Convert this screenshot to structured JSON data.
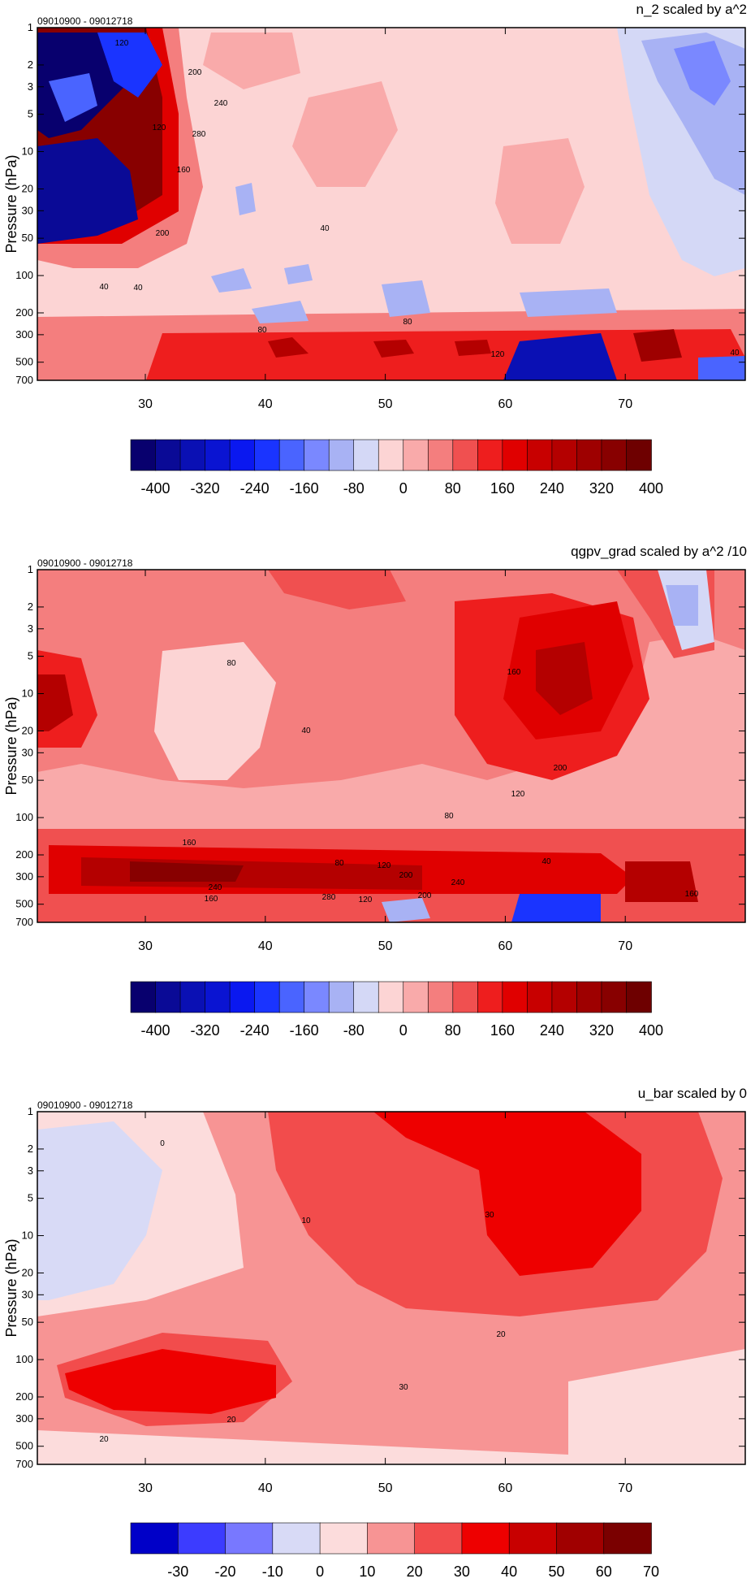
{
  "chart_data": [
    {
      "type": "contour",
      "title": "n_2 scaled by a^2",
      "date_range": "09010900 - 09012718",
      "ylabel": "Pressure (hPa)",
      "y_scale": "log",
      "y_ticks": [
        "1",
        "2",
        "3",
        "5",
        "10",
        "20",
        "30",
        "50",
        "100",
        "200",
        "300",
        "500",
        "700"
      ],
      "x_ticks": [
        "30",
        "40",
        "50",
        "60",
        "70"
      ],
      "xlim": [
        21,
        80
      ],
      "ylim": [
        700,
        1
      ],
      "colorbar_labels": [
        "-400",
        "-320",
        "-240",
        "-160",
        "-80",
        "0",
        "80",
        "160",
        "240",
        "320",
        "400"
      ],
      "colorbar_colors": [
        "#08006e",
        "#0a0a96",
        "#0a10b4",
        "#0a14d2",
        "#0a18f0",
        "#1a34ff",
        "#4a64ff",
        "#7a88ff",
        "#a8b2f4",
        "#d4d8f6",
        "#fcd4d4",
        "#f9aaaa",
        "#f47e7e",
        "#f05050",
        "#ee1e1e",
        "#e00000",
        "#c80000",
        "#b40000",
        "#9e0000",
        "#880000",
        "#6e0000"
      ],
      "contour_labels": [
        "120",
        "200",
        "240",
        "280",
        "120",
        "160",
        "200",
        "40",
        "80",
        "40",
        "80",
        "40",
        "120",
        "40"
      ],
      "regions": [
        {
          "level": 40,
          "shape": "broad pinkish field mid domain"
        },
        {
          "level": 80,
          "shape": "lower-level band near 300-500 hPa"
        },
        {
          "level": 400,
          "shape": "intense alternating cells west of 33 at 1-50 hPa"
        },
        {
          "level": -40,
          "shape": "negative region poleward of 70 upper levels"
        }
      ]
    },
    {
      "type": "contour",
      "title": "qgpv_grad scaled by a^2 /10",
      "date_range": "09010900 - 09012718",
      "ylabel": "Pressure (hPa)",
      "y_scale": "log",
      "y_ticks": [
        "1",
        "2",
        "3",
        "5",
        "10",
        "20",
        "30",
        "50",
        "100",
        "200",
        "300",
        "500",
        "700"
      ],
      "x_ticks": [
        "30",
        "40",
        "50",
        "60",
        "70"
      ],
      "xlim": [
        21,
        80
      ],
      "ylim": [
        700,
        1
      ],
      "colorbar_labels": [
        "-400",
        "-320",
        "-240",
        "-160",
        "-80",
        "0",
        "80",
        "160",
        "240",
        "320",
        "400"
      ],
      "contour_labels": [
        "80",
        "40",
        "160",
        "200",
        "120",
        "80",
        "160",
        "40",
        "80",
        "120",
        "200",
        "240",
        "240",
        "280",
        "120",
        "160",
        "200",
        "160"
      ],
      "regions": [
        {
          "level": 160,
          "shape": "maximum around 60-68 at 3-30 hPa"
        },
        {
          "level": 240,
          "shape": "strong band near 200-300 hPa from 22 to 58"
        },
        {
          "level": -80,
          "shape": "small negative near 73-75 upper levels"
        }
      ]
    },
    {
      "type": "contour",
      "title": "u_bar scaled by 0",
      "date_range": "09010900 - 09012718",
      "ylabel": "Pressure (hPa)",
      "y_scale": "log",
      "y_ticks": [
        "1",
        "2",
        "3",
        "5",
        "10",
        "20",
        "30",
        "50",
        "100",
        "200",
        "300",
        "500",
        "700"
      ],
      "x_ticks": [
        "30",
        "40",
        "50",
        "60",
        "70"
      ],
      "xlim": [
        21,
        80
      ],
      "ylim": [
        700,
        1
      ],
      "colorbar_labels": [
        "-30",
        "-20",
        "-10",
        "0",
        "10",
        "20",
        "30",
        "40",
        "50",
        "60",
        "70"
      ],
      "colorbar_colors": [
        "#0000c8",
        "#3c3cff",
        "#7878ff",
        "#d8daf6",
        "#fcdcdc",
        "#f79494",
        "#f24c4c",
        "#ee0000",
        "#c80000",
        "#a00000",
        "#7a0000"
      ],
      "contour_labels": [
        "0",
        "10",
        "30",
        "20",
        "30",
        "20",
        "20"
      ],
      "regions": [
        {
          "level": -5,
          "shape": "negative wedge at 21-31 upper levels"
        },
        {
          "level": 35,
          "shape": "core jet 57-68 near 1-20 hPa"
        },
        {
          "level": 25,
          "shape": "low-level jet 23-40 near 200 hPa"
        }
      ]
    }
  ]
}
